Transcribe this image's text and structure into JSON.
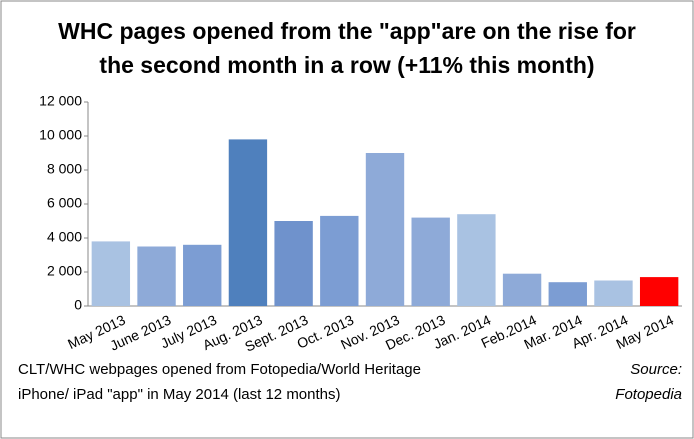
{
  "chart_data": {
    "type": "bar",
    "title": [
      "WHC pages opened from the \"app\"are on the rise for",
      "the second month in a row (+11% this month)"
    ],
    "categories": [
      "May 2013",
      "June 2013",
      "July 2013",
      "Aug. 2013",
      "Sept. 2013",
      "Oct. 2013",
      "Nov. 2013",
      "Dec. 2013",
      "Jan. 2014",
      "Feb.2014",
      "Mar. 2014",
      "Apr. 2014",
      "May 2014"
    ],
    "values": [
      3800,
      3500,
      3600,
      9800,
      5000,
      5300,
      9000,
      5200,
      5400,
      1900,
      1400,
      1500,
      1700
    ],
    "colors": [
      "#a9c2e2",
      "#8eaad8",
      "#7c9dd3",
      "#4f80bd",
      "#6f92cc",
      "#7c9dd3",
      "#8eaad8",
      "#8eaad8",
      "#a9c2e2",
      "#8eaad8",
      "#7c9dd3",
      "#a9c2e2",
      "#ff0000"
    ],
    "ylim": [
      0,
      12000
    ],
    "yticks": [
      0,
      {
        "value": 2000,
        "label": "2 000"
      },
      {
        "value": 4000,
        "label": "4 000"
      },
      {
        "value": 6000,
        "label": "6 000"
      },
      {
        "value": 8000,
        "label": "8 000"
      },
      {
        "value": 10000,
        "label": "10 000"
      },
      {
        "value": 12000,
        "label": "12 000"
      }
    ],
    "grid": false,
    "note": [
      "CLT/WHC webpages opened from Fotopedia/World Heritage",
      "iPhone/ iPad \"app\" in May 2014 (last 12 months)"
    ],
    "source": [
      "Source:",
      "Fotopedia"
    ]
  }
}
